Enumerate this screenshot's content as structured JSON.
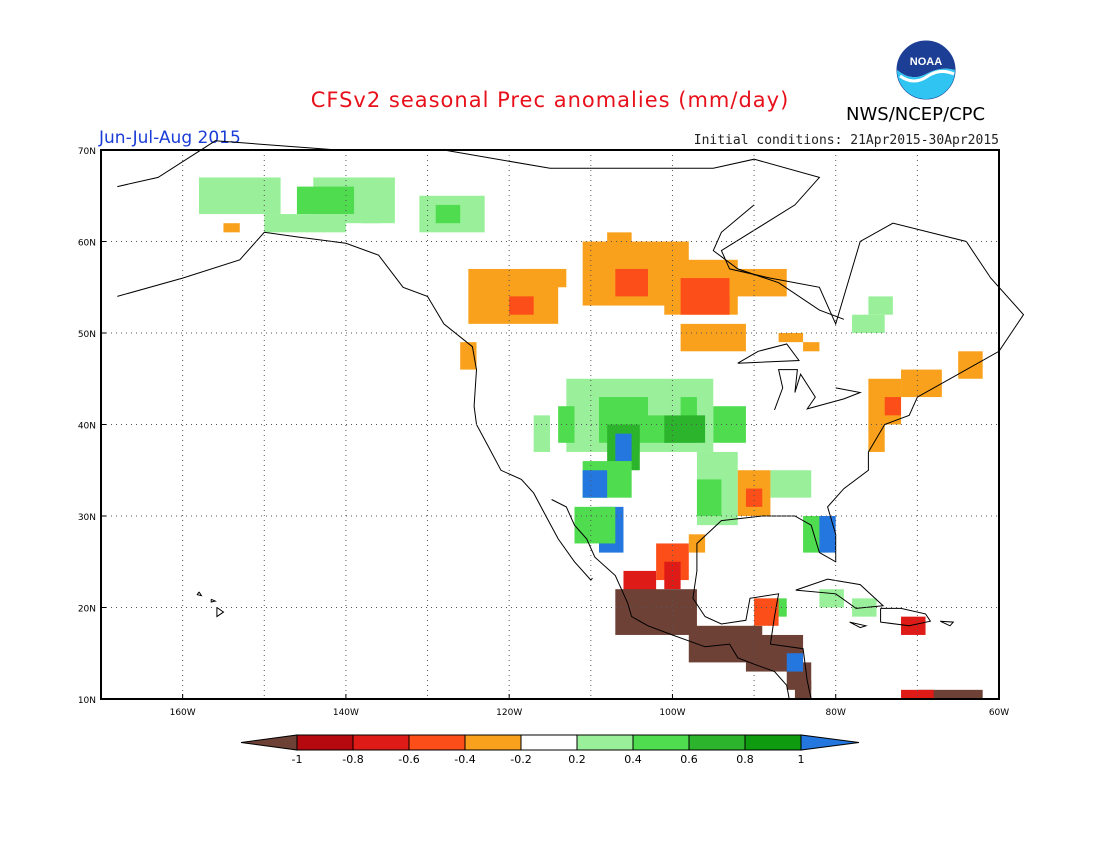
{
  "header": {
    "title": "CFSv2 seasonal Prec anomalies (mm/day)",
    "season": "Jun-Jul-Aug 2015",
    "initial_conditions": "Initial conditions: 21Apr2015-30Apr2015",
    "agency": "NWS/NCEP/CPC",
    "logo_text": "NOAA"
  },
  "map": {
    "lat_labels": [
      "70N",
      "60N",
      "50N",
      "40N",
      "30N",
      "20N",
      "10N"
    ],
    "lon_labels": [
      "160W",
      "140W",
      "120W",
      "100W",
      "80W",
      "60W"
    ]
  },
  "colorbar": {
    "tick_labels": [
      "-1",
      "-0.8",
      "-0.6",
      "-0.4",
      "-0.2",
      "0.2",
      "0.4",
      "0.6",
      "0.8",
      "1"
    ],
    "colors": {
      "lt_-1": "#6e4136",
      "-1_-0.8": "#b5090f",
      "-0.8_-0.6": "#df1b17",
      "-0.6_-0.4": "#fb4e19",
      "-0.4_-0.2": "#f9a11d",
      "-0.2_0.2": "#ffffff",
      "0.2_0.4": "#9af09a",
      "0.4_0.6": "#4fdc4f",
      "0.6_0.8": "#2cb42c",
      "0.8_1": "#0f9b10",
      "gt_1": "#2577e0"
    }
  }
}
